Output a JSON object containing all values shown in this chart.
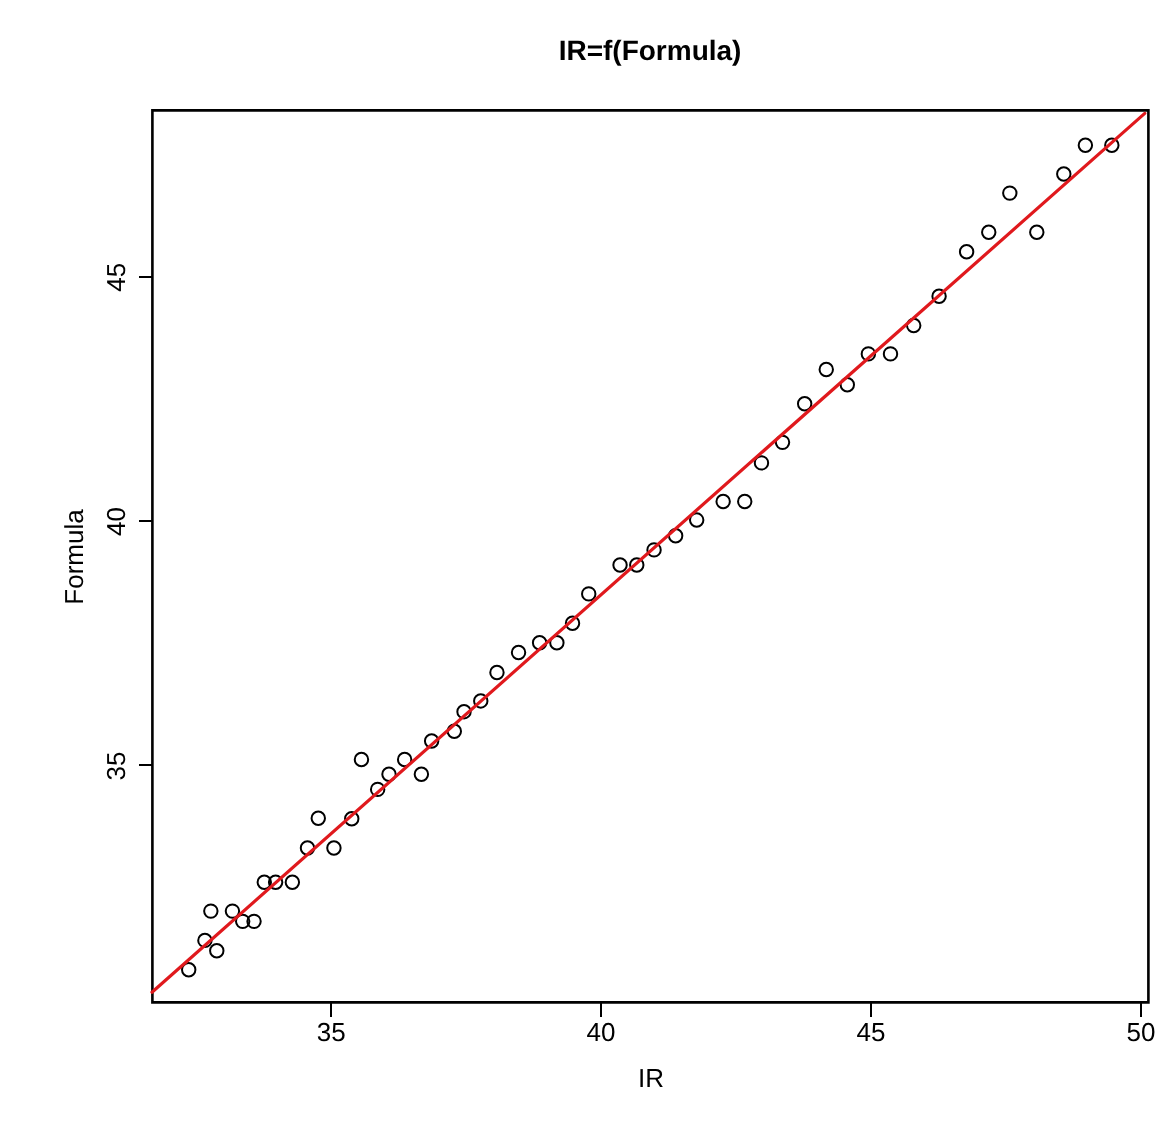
{
  "chart_data": {
    "type": "scatter",
    "title": "IR=f(Formula)",
    "xlabel": "IR",
    "ylabel": "Formula",
    "xlim": [
      31.7,
      50.15
    ],
    "ylim": [
      30.15,
      48.4
    ],
    "xticks": [
      35,
      40,
      45,
      50
    ],
    "yticks": [
      35,
      40,
      45
    ],
    "grid": false,
    "series": [
      {
        "type": "scatter",
        "color": "#000000",
        "marker": "circle",
        "x": [
          32.38,
          32.68,
          32.79,
          32.9,
          33.19,
          33.38,
          33.59,
          33.78,
          33.99,
          34.3,
          34.58,
          34.78,
          35.07,
          35.4,
          35.58,
          35.88,
          36.09,
          36.38,
          36.69,
          36.88,
          37.3,
          37.48,
          37.79,
          38.09,
          38.49,
          38.88,
          39.2,
          39.49,
          39.79,
          40.37,
          40.68,
          41.0,
          41.4,
          41.79,
          42.28,
          42.68,
          42.99,
          43.38,
          43.79,
          44.19,
          44.58,
          44.97,
          45.38,
          45.81,
          46.28,
          46.79,
          47.2,
          47.59,
          48.09,
          48.59,
          48.99,
          49.48
        ],
        "values": [
          30.81,
          31.41,
          32.01,
          31.2,
          32.01,
          31.8,
          31.8,
          32.6,
          32.6,
          32.6,
          33.3,
          33.91,
          33.3,
          33.9,
          35.11,
          34.5,
          34.81,
          35.11,
          34.81,
          35.49,
          35.69,
          36.09,
          36.31,
          36.89,
          37.3,
          37.5,
          37.5,
          37.9,
          38.5,
          39.09,
          39.09,
          39.4,
          39.69,
          40.01,
          40.39,
          40.39,
          41.18,
          41.6,
          42.39,
          43.09,
          42.78,
          43.41,
          43.41,
          43.99,
          44.59,
          45.5,
          45.9,
          46.7,
          45.9,
          47.09,
          47.68,
          47.68
        ]
      },
      {
        "type": "line",
        "color": "#e0191d",
        "x": [
          31.7,
          50.09
        ],
        "values": [
          30.35,
          48.33
        ]
      }
    ]
  }
}
